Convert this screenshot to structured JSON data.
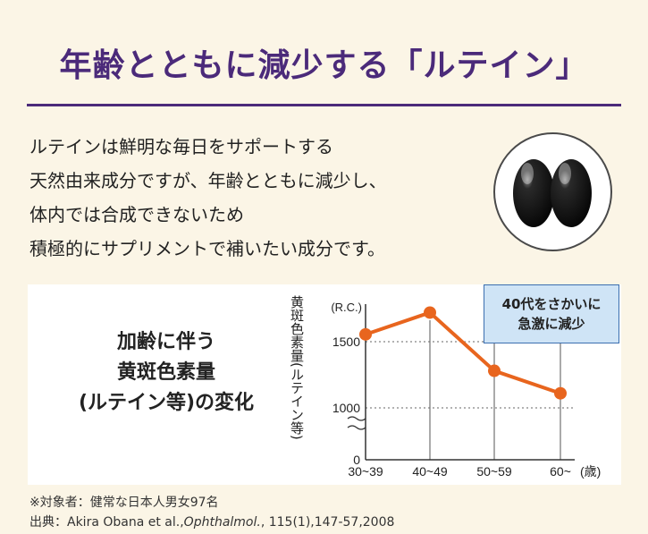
{
  "headline": "年齢とともに減少する「ルテイン」",
  "body_lines": [
    "ルテインは鮮明な毎日をサポートする",
    "天然由来成分ですが、年齢とともに減少し、",
    "体内では合成できないため",
    "積極的にサプリメントで補いたい成分です。"
  ],
  "panel_title_lines": [
    "加齢に伴う",
    "黄斑色素量",
    "(ルテイン等)の変化"
  ],
  "callout_lines": [
    "40代をさかいに",
    "急激に減少"
  ],
  "notes": {
    "subjects": "※対象者：健常な日本人男女97名",
    "source_prefix": "出典：Akira Obana et al.,",
    "source_journal": "Ophthalmol.",
    "source_suffix": ", 115(1),147-57,2008"
  },
  "colors": {
    "headline": "#4b2a7a",
    "series": "#e8651e",
    "callout_bg": "#cfe4f6",
    "callout_border": "#3b6fb0",
    "background": "#fbf5e6"
  },
  "chart_data": {
    "type": "line",
    "ylabel": "黄斑色素量(ルテイン等)",
    "yunit": "(R.C.)",
    "xunit": "(歳)",
    "categories": [
      "30~39",
      "40~49",
      "50~59",
      "60~"
    ],
    "values": [
      1555,
      1720,
      1280,
      1110
    ],
    "yticks": [
      0,
      1000,
      1500
    ],
    "ylim": [
      0,
      1800
    ],
    "axis_break": true,
    "grid": "dotted horizontal at 1000 and 1500"
  }
}
